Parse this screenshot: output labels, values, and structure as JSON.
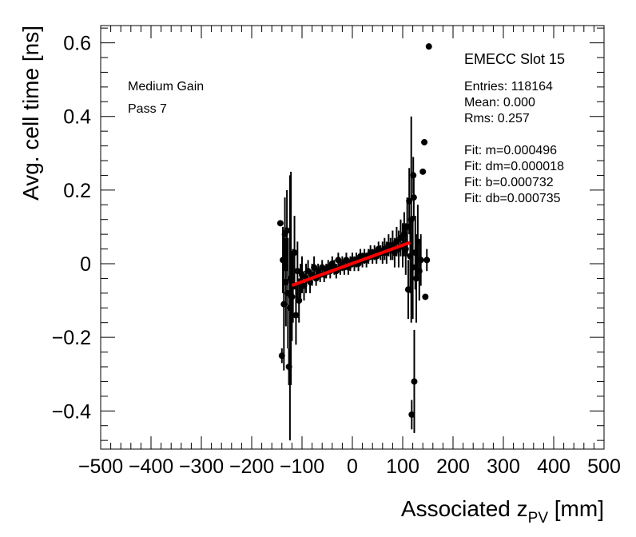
{
  "chart_data": {
    "type": "scatter",
    "title": "EMECC Slot 15",
    "xlabel": "Associated z",
    "xlabel_sub": "PV",
    "xlabel_unit": " [mm]",
    "ylabel": "Avg. cell time [ns]",
    "xlim": [
      -500,
      500
    ],
    "ylim": [
      -0.5,
      0.65
    ],
    "xticks": [
      -500,
      -400,
      -300,
      -200,
      -100,
      0,
      100,
      200,
      300,
      400,
      500
    ],
    "xtick_labels": [
      "−500",
      "−400",
      "−300",
      "−200",
      "−100",
      "0",
      "100",
      "200",
      "300",
      "400",
      "500"
    ],
    "yticks": [
      -0.4,
      -0.2,
      0,
      0.2,
      0.4,
      0.6
    ],
    "ytick_labels": [
      "−0.4",
      "−0.2",
      "0",
      "0.2",
      "0.4",
      "0.6"
    ],
    "annotations_left": [
      "Medium Gain",
      "Pass 7"
    ],
    "stats": [
      "Entries: 118164",
      "Mean: 0.000",
      "Rms: 0.257"
    ],
    "fit_text": [
      "Fit: m=0.000496",
      "Fit: dm=0.000018",
      "Fit: b=0.000732",
      "Fit: db=0.000735"
    ],
    "fit": {
      "m": 0.000496,
      "b": 0.000732,
      "x_range": [
        -120,
        115
      ],
      "color": "#ff0000"
    },
    "marker_color": "#000000",
    "series": [
      {
        "name": "data",
        "points": [
          {
            "x": -143,
            "y": 0.11,
            "err": 0.0
          },
          {
            "x": -140,
            "y": -0.25,
            "err": 0.02
          },
          {
            "x": -138,
            "y": 0.01,
            "err": 0.09
          },
          {
            "x": -136,
            "y": -0.11,
            "err": 0.18
          },
          {
            "x": -134,
            "y": 0.08,
            "err": 0.1
          },
          {
            "x": -132,
            "y": -0.05,
            "err": 0.12
          },
          {
            "x": -130,
            "y": 0.09,
            "err": 0.11
          },
          {
            "x": -128,
            "y": -0.08,
            "err": 0.15
          },
          {
            "x": -126,
            "y": -0.28,
            "err": 0.05
          },
          {
            "x": -124,
            "y": -0.12,
            "err": 0.36
          },
          {
            "x": -122,
            "y": -0.04,
            "err": 0.29
          },
          {
            "x": -120,
            "y": -0.09,
            "err": 0.12
          },
          {
            "x": -118,
            "y": -0.06,
            "err": 0.1
          },
          {
            "x": -115,
            "y": 0.03,
            "err": 0.1
          },
          {
            "x": -112,
            "y": -0.14,
            "err": 0.08
          },
          {
            "x": -109,
            "y": -0.02,
            "err": 0.08
          },
          {
            "x": -106,
            "y": -0.1,
            "err": 0.06
          },
          {
            "x": -103,
            "y": -0.05,
            "err": 0.05
          },
          {
            "x": -100,
            "y": -0.03,
            "err": 0.05
          },
          {
            "x": -96,
            "y": -0.06,
            "err": 0.04
          },
          {
            "x": -92,
            "y": -0.04,
            "err": 0.04
          },
          {
            "x": -88,
            "y": -0.02,
            "err": 0.03
          },
          {
            "x": -84,
            "y": -0.05,
            "err": 0.03
          },
          {
            "x": -80,
            "y": -0.03,
            "err": 0.03
          },
          {
            "x": -76,
            "y": -0.01,
            "err": 0.03
          },
          {
            "x": -72,
            "y": -0.04,
            "err": 0.02
          },
          {
            "x": -68,
            "y": -0.02,
            "err": 0.02
          },
          {
            "x": -64,
            "y": -0.03,
            "err": 0.02
          },
          {
            "x": -60,
            "y": -0.01,
            "err": 0.02
          },
          {
            "x": -56,
            "y": -0.03,
            "err": 0.02
          },
          {
            "x": -52,
            "y": -0.02,
            "err": 0.02
          },
          {
            "x": -48,
            "y": -0.01,
            "err": 0.02
          },
          {
            "x": -44,
            "y": -0.02,
            "err": 0.02
          },
          {
            "x": -40,
            "y": 0.0,
            "err": 0.02
          },
          {
            "x": -36,
            "y": -0.01,
            "err": 0.02
          },
          {
            "x": -32,
            "y": -0.02,
            "err": 0.02
          },
          {
            "x": -28,
            "y": 0.01,
            "err": 0.02
          },
          {
            "x": -24,
            "y": -0.01,
            "err": 0.02
          },
          {
            "x": -20,
            "y": 0.0,
            "err": 0.02
          },
          {
            "x": -16,
            "y": -0.01,
            "err": 0.02
          },
          {
            "x": -12,
            "y": 0.01,
            "err": 0.02
          },
          {
            "x": -8,
            "y": -0.01,
            "err": 0.02
          },
          {
            "x": -4,
            "y": 0.0,
            "err": 0.02
          },
          {
            "x": 0,
            "y": 0.01,
            "err": 0.02
          },
          {
            "x": 4,
            "y": 0.0,
            "err": 0.02
          },
          {
            "x": 8,
            "y": 0.01,
            "err": 0.02
          },
          {
            "x": 12,
            "y": 0.0,
            "err": 0.02
          },
          {
            "x": 16,
            "y": 0.02,
            "err": 0.02
          },
          {
            "x": 20,
            "y": 0.01,
            "err": 0.02
          },
          {
            "x": 24,
            "y": 0.02,
            "err": 0.02
          },
          {
            "x": 28,
            "y": 0.01,
            "err": 0.02
          },
          {
            "x": 32,
            "y": 0.02,
            "err": 0.02
          },
          {
            "x": 36,
            "y": 0.03,
            "err": 0.02
          },
          {
            "x": 40,
            "y": 0.02,
            "err": 0.02
          },
          {
            "x": 44,
            "y": 0.03,
            "err": 0.02
          },
          {
            "x": 48,
            "y": 0.02,
            "err": 0.02
          },
          {
            "x": 52,
            "y": 0.04,
            "err": 0.02
          },
          {
            "x": 56,
            "y": 0.03,
            "err": 0.02
          },
          {
            "x": 60,
            "y": 0.03,
            "err": 0.03
          },
          {
            "x": 64,
            "y": 0.04,
            "err": 0.03
          },
          {
            "x": 68,
            "y": 0.03,
            "err": 0.03
          },
          {
            "x": 72,
            "y": 0.05,
            "err": 0.03
          },
          {
            "x": 76,
            "y": 0.04,
            "err": 0.03
          },
          {
            "x": 80,
            "y": 0.05,
            "err": 0.04
          },
          {
            "x": 84,
            "y": 0.03,
            "err": 0.04
          },
          {
            "x": 88,
            "y": 0.06,
            "err": 0.04
          },
          {
            "x": 92,
            "y": 0.04,
            "err": 0.05
          },
          {
            "x": 96,
            "y": 0.07,
            "err": 0.05
          },
          {
            "x": 100,
            "y": 0.05,
            "err": 0.06
          },
          {
            "x": 103,
            "y": 0.08,
            "err": 0.06
          },
          {
            "x": 106,
            "y": 0.04,
            "err": 0.07
          },
          {
            "x": 109,
            "y": 0.1,
            "err": 0.08
          },
          {
            "x": 111,
            "y": -0.07,
            "err": 0.08
          },
          {
            "x": 113,
            "y": 0.17,
            "err": 0.09
          },
          {
            "x": 115,
            "y": 0.02,
            "err": 0.1
          },
          {
            "x": 117,
            "y": 0.12,
            "err": 0.28
          },
          {
            "x": 118,
            "y": -0.41,
            "err": 0.04
          },
          {
            "x": 120,
            "y": -0.01,
            "err": 0.14
          },
          {
            "x": 121,
            "y": 0.24,
            "err": 0.05
          },
          {
            "x": 122,
            "y": 0.18,
            "err": 0.06
          },
          {
            "x": 123,
            "y": -0.32,
            "err": 0.14
          },
          {
            "x": 125,
            "y": 0.03,
            "err": 0.1
          },
          {
            "x": 127,
            "y": -0.04,
            "err": 0.12
          },
          {
            "x": 130,
            "y": 0.06,
            "err": 0.1
          },
          {
            "x": 133,
            "y": -0.02,
            "err": 0.08
          },
          {
            "x": 136,
            "y": 0.01,
            "err": 0.07
          },
          {
            "x": 140,
            "y": 0.25,
            "err": 0.0
          },
          {
            "x": 143,
            "y": 0.33,
            "err": 0.0
          },
          {
            "x": 145,
            "y": -0.09,
            "err": 0.0
          },
          {
            "x": 148,
            "y": 0.01,
            "err": 0.03
          },
          {
            "x": 152,
            "y": 0.59,
            "err": 0.0
          }
        ]
      }
    ]
  }
}
